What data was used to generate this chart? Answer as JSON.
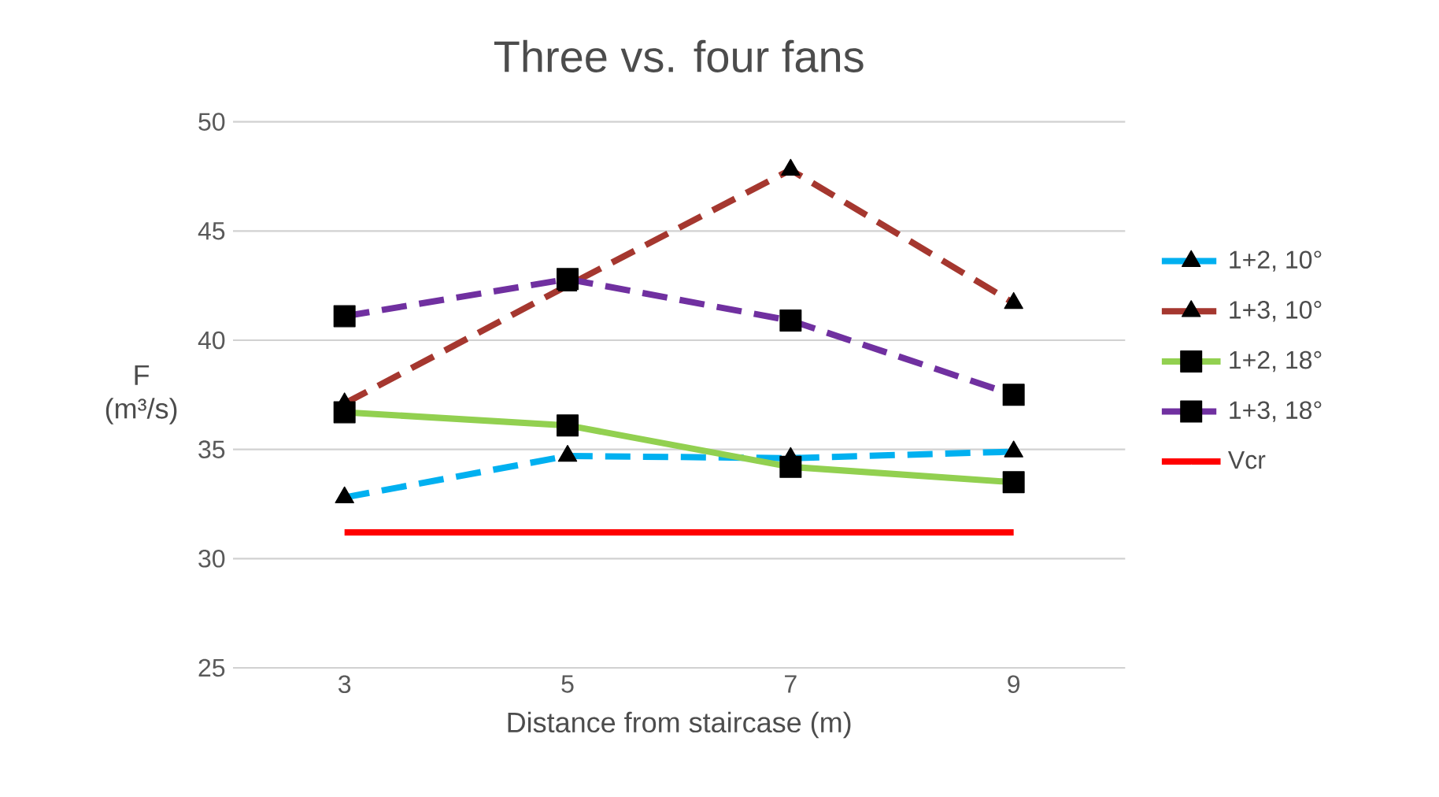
{
  "chart_data": {
    "type": "line",
    "title": "Three vs. four fans",
    "xlabel": "Distance from staircase (m)",
    "ylabel": "F (m³/s)",
    "categories": [
      "3",
      "5",
      "7",
      "9"
    ],
    "ylim": [
      25,
      50
    ],
    "yticks": [
      25,
      30,
      35,
      40,
      45,
      50
    ],
    "grid": "y",
    "legend": "right",
    "series": [
      {
        "name": "1+2, 10°",
        "color": "#00b0f0",
        "values": [
          32.8,
          34.7,
          34.6,
          34.9
        ],
        "marker": "triangle",
        "line_style": "dashed"
      },
      {
        "name": "1+3, 10°",
        "color": "#a5372f",
        "values": [
          37.1,
          42.5,
          47.8,
          41.7
        ],
        "marker": "triangle",
        "line_style": "dashed"
      },
      {
        "name": "1+2, 18°",
        "color": "#92d050",
        "values": [
          36.7,
          36.1,
          34.2,
          33.5
        ],
        "marker": "square",
        "line_style": "solid"
      },
      {
        "name": "1+3, 18°",
        "color": "#7030a0",
        "values": [
          41.1,
          42.8,
          40.9,
          37.5
        ],
        "marker": "square",
        "line_style": "dashed"
      },
      {
        "name": "Vcr",
        "color": "#ff0000",
        "values": [
          31.2,
          31.2,
          31.2,
          31.2
        ],
        "marker": "none",
        "line_style": "solid"
      }
    ]
  }
}
